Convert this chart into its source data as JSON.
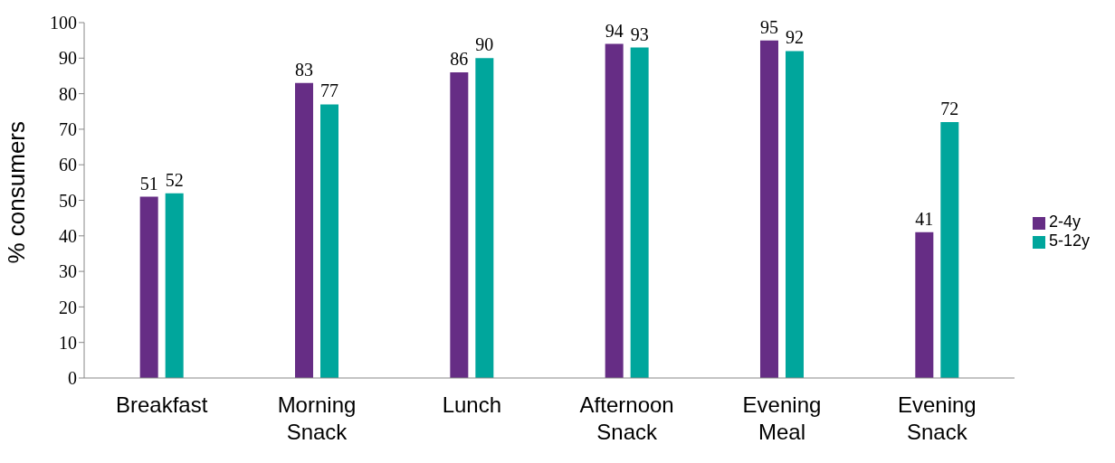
{
  "chart_data": {
    "type": "bar",
    "ylabel": "% consumers",
    "categories": [
      "Breakfast",
      "Morning Snack",
      "Lunch",
      "Afternoon Snack",
      "Evening Meal",
      "Evening Snack"
    ],
    "series": [
      {
        "name": "2-4y",
        "color": "#662d85",
        "values": [
          51,
          83,
          86,
          94,
          95,
          41
        ]
      },
      {
        "name": "5-12y",
        "color": "#00a69c",
        "values": [
          52,
          77,
          90,
          93,
          92,
          72
        ]
      }
    ],
    "ylim": [
      0,
      100
    ],
    "yticks": [
      0,
      10,
      20,
      30,
      40,
      50,
      60,
      70,
      80,
      90,
      100
    ],
    "grid": false,
    "legend": "right",
    "data_labels": true
  }
}
